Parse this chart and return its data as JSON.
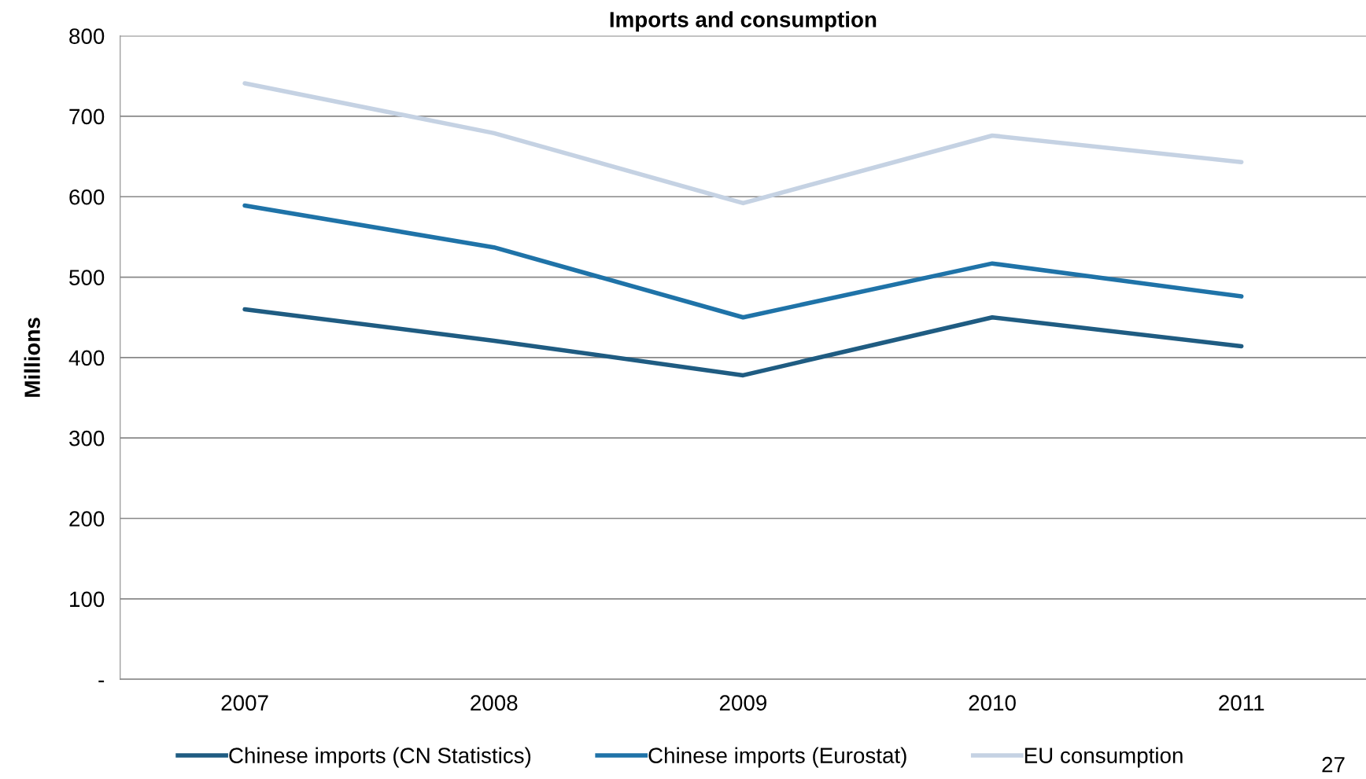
{
  "chart_data": {
    "type": "line",
    "title": "Imports and consumption",
    "ylabel": "Millions",
    "categories": [
      "2007",
      "2008",
      "2009",
      "2010",
      "2011"
    ],
    "series": [
      {
        "name": "Chinese imports (CN Statistics)",
        "color": "#1f5c82",
        "values": [
          460,
          421,
          378,
          450,
          414
        ]
      },
      {
        "name": "Chinese imports (Eurostat)",
        "color": "#1f73a8",
        "values": [
          589,
          537,
          450,
          517,
          476
        ]
      },
      {
        "name": "EU consumption",
        "color": "#c5d2e3",
        "values": [
          741,
          679,
          592,
          676,
          643
        ]
      }
    ],
    "ylim": [
      0,
      800
    ],
    "yticks": [
      {
        "value": 0,
        "label": "-"
      },
      100,
      200,
      300,
      400,
      500,
      600,
      700,
      800
    ],
    "grid": "y",
    "legend": "bottom",
    "marker": "none",
    "line_style": "solid",
    "annotations": [
      "27"
    ]
  }
}
